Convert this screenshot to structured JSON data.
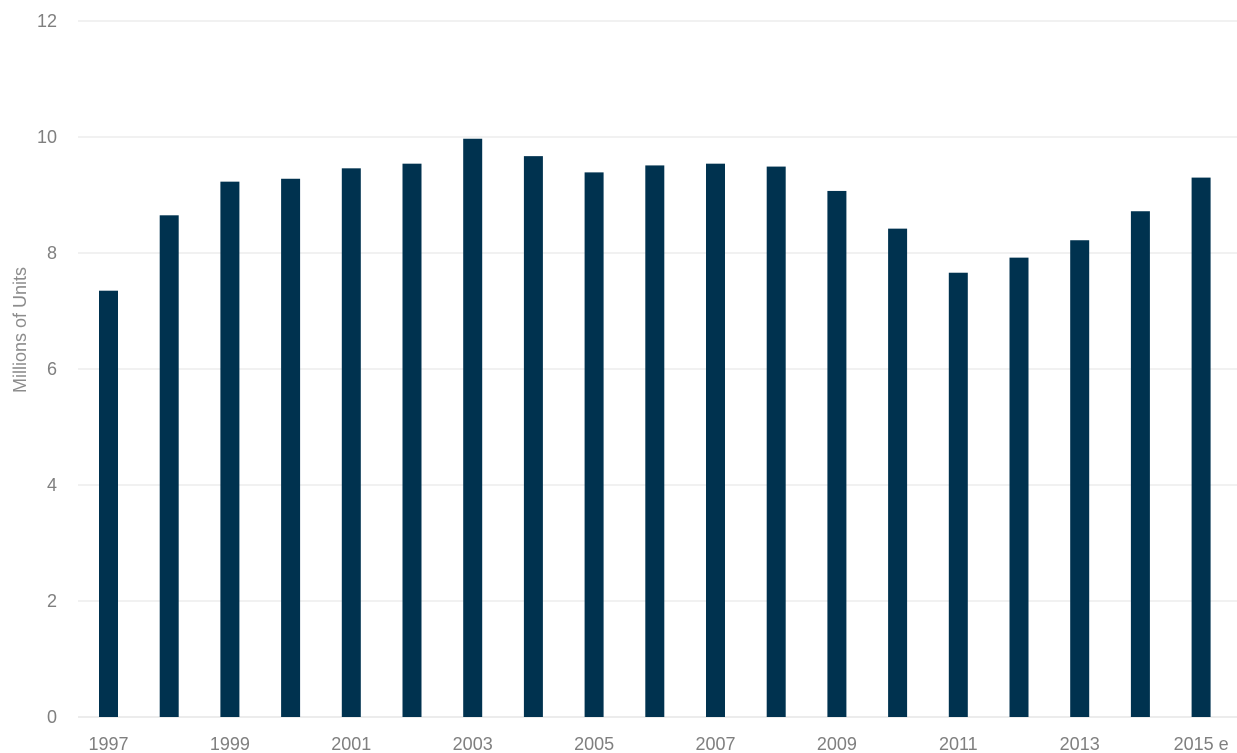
{
  "chart_data": {
    "type": "bar",
    "categories": [
      "1997",
      "1998",
      "1999",
      "2000",
      "2001",
      "2002",
      "2003",
      "2004",
      "2005",
      "2006",
      "2007",
      "2008",
      "2009",
      "2010",
      "2011",
      "2012",
      "2013",
      "2014",
      "2015 e"
    ],
    "shown_x_labels": [
      "1997",
      "1999",
      "2001",
      "2003",
      "2005",
      "2007",
      "2009",
      "2011",
      "2013",
      "2015 e"
    ],
    "values": [
      7.35,
      8.65,
      9.23,
      9.28,
      9.46,
      9.54,
      9.97,
      9.67,
      9.39,
      9.51,
      9.54,
      9.49,
      9.07,
      8.42,
      7.66,
      7.92,
      8.22,
      8.72,
      9.3
    ],
    "title": "",
    "xlabel": "",
    "ylabel": "Millions of Units",
    "ylim": [
      0,
      12
    ],
    "yticks": [
      0,
      2,
      4,
      6,
      8,
      10,
      12
    ],
    "grid": true,
    "bar_color": "#00324f"
  }
}
